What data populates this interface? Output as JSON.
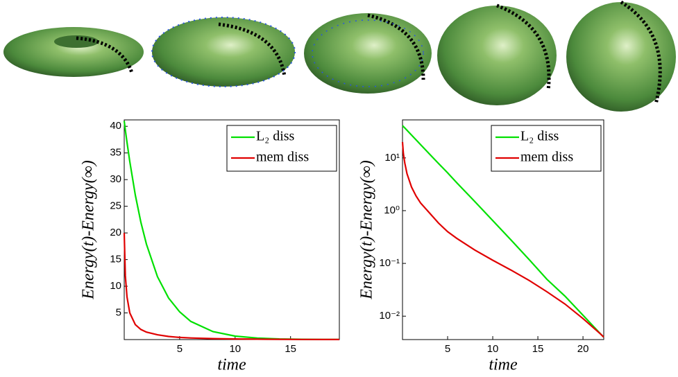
{
  "chart_data": [
    {
      "type": "line",
      "y_label": "Energy(t)-Energy(∞)",
      "x_label": "time",
      "log_y": false,
      "legend": "upper right",
      "xlim": [
        0,
        19.4
      ],
      "ylim": [
        0,
        41.2
      ],
      "xticks": [
        5,
        10,
        15
      ],
      "yticks": [
        5,
        10,
        15,
        20,
        25,
        30,
        35,
        40
      ],
      "x": [
        0,
        0.1,
        0.25,
        0.5,
        1,
        1.5,
        2,
        3,
        4,
        5,
        6,
        8,
        10,
        12,
        14,
        16,
        18,
        19.4
      ],
      "series": [
        {
          "name": "L₂ diss",
          "color": "#00e000",
          "values": [
            41,
            39.3,
            37,
            33.4,
            27.1,
            22,
            17.9,
            11.8,
            7.8,
            5.2,
            3.4,
            1.5,
            0.65,
            0.28,
            0.12,
            0.05,
            0.024,
            0.013
          ]
        },
        {
          "name": "mem diss",
          "color": "#e00000",
          "values": [
            20,
            12,
            8,
            5,
            2.8,
            1.9,
            1.4,
            0.9,
            0.58,
            0.4,
            0.3,
            0.18,
            0.115,
            0.075,
            0.048,
            0.029,
            0.017,
            0.011
          ]
        }
      ]
    },
    {
      "type": "line",
      "y_label": "Energy(t)-Energy(∞)",
      "x_label": "time",
      "log_y": true,
      "legend": "upper right",
      "xlim": [
        0,
        22.3
      ],
      "ylim": [
        0.0036,
        52.5
      ],
      "xticks": [
        5,
        10,
        15,
        20
      ],
      "yticks": [
        {
          "value": 0.01,
          "label": "10⁻²"
        },
        {
          "value": 0.1,
          "label": "10⁻¹"
        },
        {
          "value": 1,
          "label": "10⁰"
        },
        {
          "value": 10,
          "label": "10¹"
        }
      ],
      "x": [
        0,
        0.1,
        0.25,
        0.5,
        1,
        1.5,
        2,
        3,
        4,
        5,
        6,
        8,
        10,
        12,
        14,
        16,
        18,
        20,
        22,
        22.3
      ],
      "series": [
        {
          "name": "L₂ diss",
          "color": "#00e000",
          "values": [
            41,
            39.3,
            37,
            33.4,
            27.1,
            22,
            17.9,
            11.8,
            7.8,
            5.2,
            3.4,
            1.5,
            0.65,
            0.28,
            0.12,
            0.05,
            0.024,
            0.0104,
            0.0045,
            0.004
          ]
        },
        {
          "name": "mem diss",
          "color": "#e00000",
          "values": [
            20,
            12,
            8,
            5,
            2.8,
            1.9,
            1.4,
            0.9,
            0.58,
            0.4,
            0.3,
            0.18,
            0.115,
            0.075,
            0.048,
            0.029,
            0.017,
            0.009,
            0.0045,
            0.004
          ]
        }
      ]
    }
  ]
}
